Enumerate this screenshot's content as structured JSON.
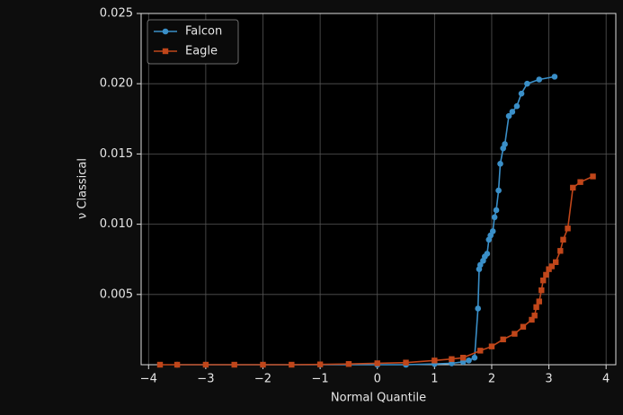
{
  "chart_data": {
    "type": "line",
    "xlabel": "Normal Quantile",
    "ylabel": "ν Classical",
    "xlim": [
      -4.13,
      4.17
    ],
    "ylim": [
      0,
      0.025
    ],
    "xticks": [
      {
        "value": -4,
        "label": "−4"
      },
      {
        "value": -3,
        "label": "−3"
      },
      {
        "value": -2,
        "label": "−2"
      },
      {
        "value": -1,
        "label": "−1"
      },
      0,
      1,
      2,
      3,
      4
    ],
    "yticks": [
      0.005,
      {
        "value": 0.01,
        "label": "0.010"
      },
      0.015,
      {
        "value": 0.02,
        "label": "0.020"
      },
      0.025
    ],
    "grid": true,
    "legend": "upper left",
    "series": [
      {
        "name": "Falcon",
        "color": "#3a8fc8",
        "marker": "circle",
        "x": [
          -3.5,
          -3,
          -2,
          -1,
          0,
          0.5,
          1,
          1.3,
          1.5,
          1.6,
          1.7,
          1.76,
          1.78,
          1.8,
          1.85,
          1.88,
          1.92,
          1.95,
          1.98,
          2.02,
          2.05,
          2.08,
          2.12,
          2.15,
          2.2,
          2.23,
          2.3,
          2.36,
          2.44,
          2.52,
          2.62,
          2.83,
          3.1
        ],
        "values": [
          0,
          0,
          0,
          0,
          0,
          0,
          5e-05,
          0.0001,
          0.0002,
          0.0003,
          0.0005,
          0.004,
          0.0068,
          0.0071,
          0.0074,
          0.0077,
          0.0079,
          0.0089,
          0.0092,
          0.0095,
          0.0105,
          0.011,
          0.0124,
          0.0143,
          0.0154,
          0.0157,
          0.0177,
          0.018,
          0.0184,
          0.0193,
          0.02,
          0.0203,
          0.0205
        ]
      },
      {
        "name": "Eagle",
        "color": "#c0461a",
        "marker": "square",
        "x": [
          -3.8,
          -3.5,
          -3,
          -2.5,
          -2,
          -1.5,
          -1,
          -0.5,
          0,
          0.5,
          1,
          1.3,
          1.5,
          1.8,
          2,
          2.2,
          2.4,
          2.55,
          2.7,
          2.75,
          2.78,
          2.83,
          2.87,
          2.9,
          2.95,
          3,
          3.05,
          3.12,
          3.2,
          3.25,
          3.33,
          3.42,
          3.55,
          3.77
        ],
        "values": [
          0,
          0,
          0,
          0,
          0,
          0,
          2e-05,
          5e-05,
          0.0001,
          0.00015,
          0.0003,
          0.0004,
          0.0005,
          0.001,
          0.0013,
          0.0018,
          0.0022,
          0.0027,
          0.0032,
          0.0035,
          0.0041,
          0.0045,
          0.0053,
          0.006,
          0.0064,
          0.0068,
          0.007,
          0.0073,
          0.0081,
          0.0089,
          0.0097,
          0.0126,
          0.013,
          0.0134
        ]
      }
    ]
  }
}
